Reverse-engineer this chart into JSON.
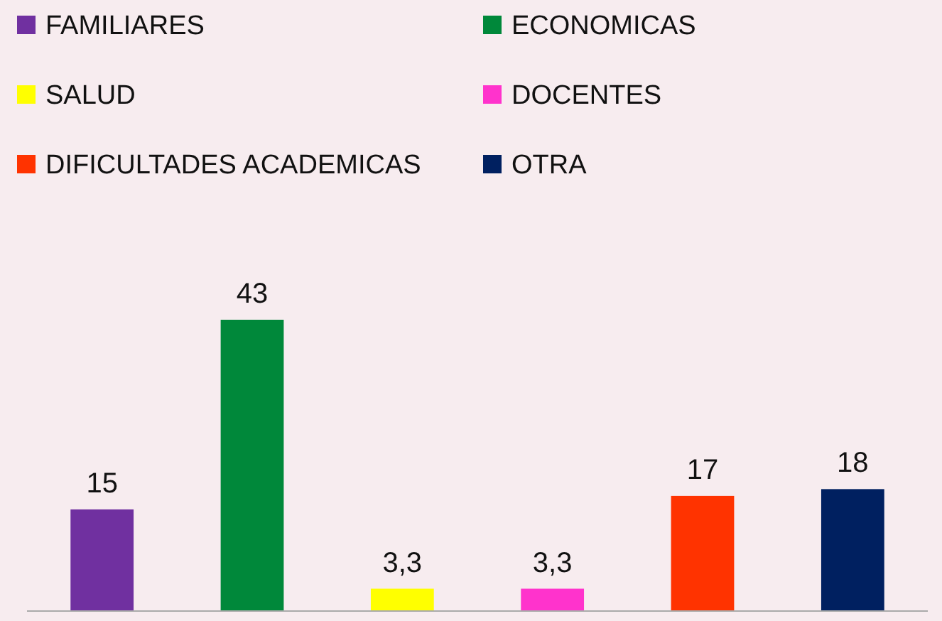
{
  "chart_data": {
    "type": "bar",
    "stacked": true,
    "categories": [
      null,
      null,
      null,
      null,
      null,
      null
    ],
    "legend": "top",
    "series": [
      {
        "name": "FAMILIARES",
        "color": "#7030a0",
        "values": [
          15,
          null,
          null,
          null,
          null,
          null
        ],
        "value_labels": [
          "15",
          null,
          null,
          null,
          null,
          null
        ]
      },
      {
        "name": "ECONOMICAS",
        "color": "#00883a",
        "values": [
          null,
          43,
          null,
          null,
          null,
          null
        ],
        "value_labels": [
          null,
          "43",
          null,
          null,
          null,
          null
        ]
      },
      {
        "name": "SALUD",
        "color": "#ffff00",
        "values": [
          null,
          null,
          3.3,
          null,
          null,
          null
        ],
        "value_labels": [
          null,
          null,
          "3,3",
          null,
          null,
          null
        ]
      },
      {
        "name": "DOCENTES",
        "color": "#ff33cc",
        "values": [
          null,
          null,
          null,
          3.3,
          null,
          null
        ],
        "value_labels": [
          null,
          null,
          null,
          "3,3",
          null,
          null
        ]
      },
      {
        "name": "DIFICULTADES ACADEMICAS",
        "color": "#ff3300",
        "values": [
          null,
          null,
          null,
          null,
          17,
          null
        ],
        "value_labels": [
          null,
          null,
          null,
          null,
          "17",
          null
        ]
      },
      {
        "name": "OTRA",
        "color": "#002060",
        "values": [
          null,
          null,
          null,
          null,
          null,
          18
        ],
        "value_labels": [
          null,
          null,
          null,
          null,
          null,
          "18"
        ]
      }
    ]
  }
}
